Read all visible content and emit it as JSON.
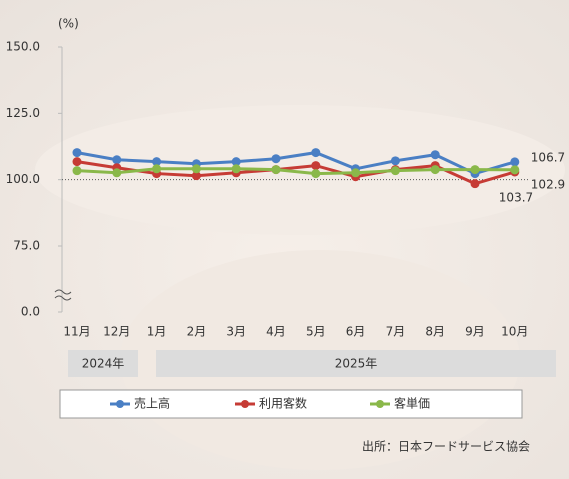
{
  "chart_data": {
    "type": "line",
    "y_unit": "(%)",
    "categories": [
      "11月",
      "12月",
      "1月",
      "2月",
      "3月",
      "4月",
      "5月",
      "6月",
      "7月",
      "8月",
      "9月",
      "10月"
    ],
    "year_labels": [
      "2024年",
      "2025年"
    ],
    "series": [
      {
        "name": "売上高",
        "color": "#4a7fc4",
        "values": [
          110.2,
          107.5,
          106.8,
          106.0,
          106.8,
          107.9,
          110.2,
          104.1,
          107.1,
          109.4,
          102.3,
          106.7
        ]
      },
      {
        "name": "利用客数",
        "color": "#c63b35",
        "values": [
          106.8,
          104.5,
          102.3,
          101.5,
          102.6,
          103.8,
          105.3,
          101.1,
          103.8,
          105.3,
          98.5,
          102.9
        ]
      },
      {
        "name": "客単価",
        "color": "#8ab84a",
        "values": [
          103.4,
          102.6,
          104.1,
          104.1,
          104.1,
          103.8,
          102.3,
          102.6,
          103.4,
          103.8,
          103.8,
          103.7
        ]
      }
    ],
    "ylim": [
      0,
      150
    ],
    "y_break": [
      0,
      75
    ],
    "yticks": [
      {
        "value": 0,
        "label": "0.0"
      },
      {
        "value": 75,
        "label": "75.0"
      },
      {
        "value": 100,
        "label": "100.0"
      },
      {
        "value": 125,
        "label": "125.0"
      },
      {
        "value": 150,
        "label": "150.0"
      }
    ],
    "reference_line": 100,
    "source": "出所：日本フードサービス協会"
  }
}
